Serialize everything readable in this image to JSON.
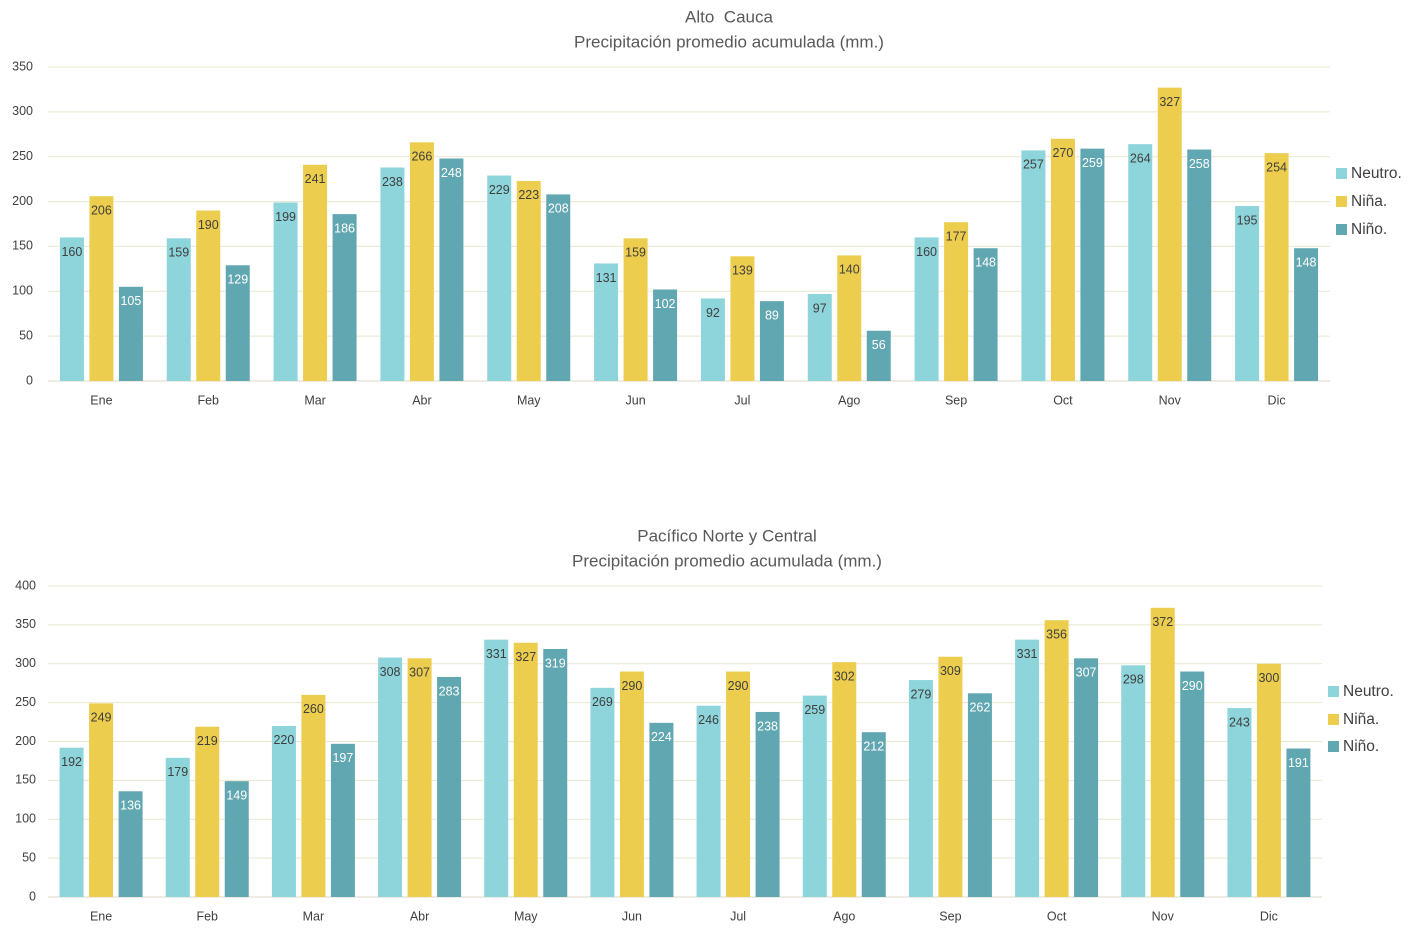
{
  "colors": {
    "neutro": "#8dd4db",
    "nina": "#edcd4d",
    "nino": "#61a7b1",
    "grid": "#e9e7cf",
    "axis": "#dcdac4",
    "text": "#404040",
    "title": "#595959"
  },
  "chart_data": [
    {
      "type": "bar",
      "title": "Alto  Cauca",
      "subtitle": "Precipitación promedio acumulada (mm.)",
      "categories": [
        "Ene",
        "Feb",
        "Mar",
        "Abr",
        "May",
        "Jun",
        "Jul",
        "Ago",
        "Sep",
        "Oct",
        "Nov",
        "Dic"
      ],
      "series": [
        {
          "name": "Neutro.",
          "color_key": "neutro",
          "values": [
            160,
            159,
            199,
            238,
            229,
            131,
            92,
            97,
            160,
            257,
            264,
            195
          ]
        },
        {
          "name": "Niña.",
          "color_key": "nina",
          "values": [
            206,
            190,
            241,
            266,
            223,
            159,
            139,
            140,
            177,
            270,
            327,
            254
          ]
        },
        {
          "name": "Niño.",
          "color_key": "nino",
          "values": [
            105,
            129,
            186,
            248,
            208,
            102,
            89,
            56,
            148,
            259,
            258,
            148
          ]
        }
      ],
      "ylim": [
        0,
        350
      ],
      "yticks": [
        0,
        50,
        100,
        150,
        200,
        250,
        300,
        350
      ],
      "grid": true,
      "legend": "right"
    },
    {
      "type": "bar",
      "title": "Pacífico Norte y Central",
      "subtitle": "Precipitación promedio acumulada (mm.)",
      "categories": [
        "Ene",
        "Feb",
        "Mar",
        "Abr",
        "May",
        "Jun",
        "Jul",
        "Ago",
        "Sep",
        "Oct",
        "Nov",
        "Dic"
      ],
      "series": [
        {
          "name": "Neutro.",
          "color_key": "neutro",
          "values": [
            192,
            179,
            220,
            308,
            331,
            269,
            246,
            259,
            279,
            331,
            298,
            243
          ]
        },
        {
          "name": "Niña.",
          "color_key": "nina",
          "values": [
            249,
            219,
            260,
            307,
            327,
            290,
            290,
            302,
            309,
            356,
            372,
            300
          ]
        },
        {
          "name": "Niño.",
          "color_key": "nino",
          "values": [
            136,
            149,
            197,
            283,
            319,
            224,
            238,
            212,
            262,
            307,
            290,
            191
          ]
        }
      ],
      "ylim": [
        0,
        400
      ],
      "yticks": [
        0,
        50,
        100,
        150,
        200,
        250,
        300,
        350,
        400
      ],
      "grid": true,
      "legend": "right"
    }
  ]
}
